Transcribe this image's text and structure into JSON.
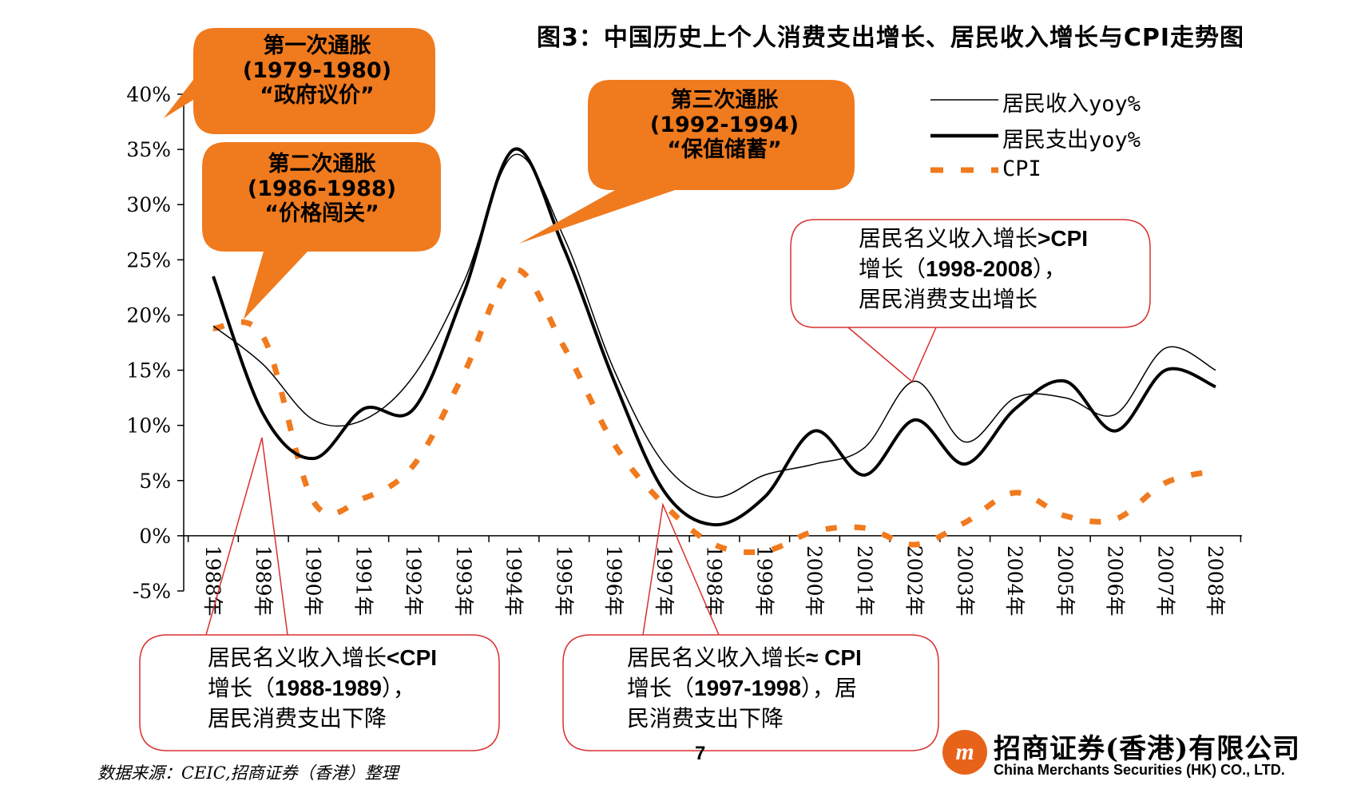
{
  "page": {
    "title": "图3：中国历史上个人消费支出增长、居民收入增长与CPI走势图",
    "page_number": "7",
    "source": "数据来源：CEIC,招商证券（香港）整理"
  },
  "logo": {
    "icon": "china-merchants-logo-icon",
    "name_cn": "招商证券(香港)有限公司",
    "name_en": "China Merchants Securities (HK) CO., LTD."
  },
  "colors": {
    "accent": "#F07A1E",
    "line": "#000000",
    "cpi": "#F07A1E",
    "callout_border": "#D93030"
  },
  "callouts": {
    "inflation1": {
      "line1": "第一次通胀",
      "line2": "(1979-1980)",
      "line3": "“政府议价”"
    },
    "inflation2": {
      "line1": "第二次通胀",
      "line2": "(1986-1988)",
      "line3": "“价格闯关”"
    },
    "inflation3": {
      "line1": "第三次通胀",
      "line2": "(1992-1994)",
      "line3": "“保值储蓄”"
    },
    "box_right": {
      "l1a": "居民名义收入增长",
      "l1b": ">CPI",
      "l2a": "增长（",
      "l2b": "1998-2008",
      "l2c": "），",
      "l3": "居民消费支出增长"
    },
    "box_left": {
      "l1a": "居民名义收入增长",
      "l1b": "<CPI",
      "l2a": "增长（",
      "l2b": "1988-1989",
      "l2c": "），",
      "l3": "居民消费支出下降"
    },
    "box_mid": {
      "l1a": "居民名义收入增长",
      "l1b": "≈ CPI",
      "l2a": "增长（",
      "l2b": "1997-1998",
      "l2c": "），居",
      "l3": "民消费支出下降"
    }
  },
  "chart_data": {
    "type": "line",
    "title": "图3：中国历史上个人消费支出增长、居民收入增长与CPI走势图",
    "categories": [
      "1988年",
      "1989年",
      "1990年",
      "1991年",
      "1992年",
      "1993年",
      "1994年",
      "1995年",
      "1996年",
      "1997年",
      "1998年",
      "1999年",
      "2000年",
      "2001年",
      "2002年",
      "2003年",
      "2004年",
      "2005年",
      "2006年",
      "2007年",
      "2008年"
    ],
    "y_ticks": [
      "40%",
      "35%",
      "30%",
      "25%",
      "20%",
      "15%",
      "10%",
      "5%",
      "0%",
      "-5%"
    ],
    "ylim": [
      -5,
      40
    ],
    "grid": false,
    "legend_position": "top-right",
    "series": [
      {
        "name": "居民收入yoy%",
        "style": "thin-solid",
        "values": [
          19,
          15.5,
          10.5,
          10.5,
          14.5,
          23,
          34.5,
          27,
          15,
          6.5,
          3.5,
          5.5,
          6.5,
          8,
          14,
          8.5,
          12.5,
          12.5,
          11,
          17,
          15
        ]
      },
      {
        "name": "居民支出yoy%",
        "style": "thick-solid",
        "values": [
          23.5,
          11,
          7,
          11.5,
          11.5,
          22,
          35,
          26,
          14,
          4,
          1,
          3.5,
          9.5,
          5.5,
          10.5,
          6.5,
          11.5,
          14,
          9.5,
          15,
          13.5
        ]
      },
      {
        "name": "CPI",
        "style": "dashed",
        "values": [
          18.8,
          18,
          3.1,
          3.4,
          6.4,
          14.7,
          24.1,
          17.1,
          8.3,
          2.8,
          -0.8,
          -1.4,
          0.4,
          0.7,
          -0.8,
          1.2,
          3.9,
          1.8,
          1.5,
          4.8,
          5.9
        ]
      }
    ]
  }
}
